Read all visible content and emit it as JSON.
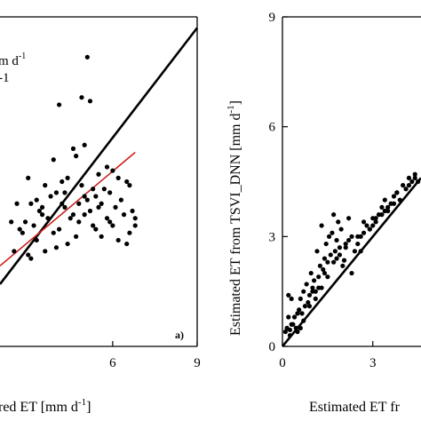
{
  "chart_data": [
    {
      "panel": "a",
      "type": "scatter",
      "panel_label": "a)",
      "xlabel": "red ET [mm d",
      "xlabel_sup": "-1",
      "xlabel_end": "]",
      "annotation": "m d",
      "annotation_sup": "-1",
      "annotation2_sup": "-1",
      "xlim": [
        2.0,
        9.0
      ],
      "ylim": [
        0,
        9
      ],
      "xticks": [
        6,
        9
      ],
      "grid": false,
      "lines": [
        {
          "kind": "1:1",
          "color": "#000000",
          "x": [
            2.0,
            9.0
          ],
          "y": [
            1.7,
            8.7
          ]
        },
        {
          "kind": "fit",
          "color": "#cc1f1f",
          "x": [
            2.0,
            6.8
          ],
          "y": [
            2.2,
            5.3
          ]
        }
      ],
      "points": {
        "x": [
          5.1,
          4.1,
          4.9,
          5.2,
          5.0,
          4.6,
          4.7,
          5.8,
          3.9,
          4.4,
          5.5,
          6.0,
          6.5,
          6.6,
          6.2,
          5.7,
          4.2,
          3.6,
          4.9,
          5.3,
          5.4,
          5.9,
          6.3,
          4.0,
          3.8,
          3.3,
          3.1,
          3.5,
          2.6,
          3.0,
          3.4,
          4.3,
          4.8,
          5.1,
          5.6,
          6.1,
          6.7,
          6.4,
          5.0,
          4.5,
          3.7,
          2.9,
          3.2,
          2.7,
          2.4,
          4.6,
          5.2,
          5.8,
          6.0,
          4.1,
          3.9,
          4.7,
          5.4,
          6.6,
          2.8,
          3.3,
          4.4,
          5.6,
          6.2,
          6.5,
          5.9,
          5.3,
          4.0,
          3.6,
          3.0,
          2.5,
          4.8,
          5.5,
          4.2,
          3.5,
          6.8,
          6.8,
          5.0,
          4.3,
          3.1
        ],
        "y": [
          7.9,
          6.6,
          6.8,
          6.7,
          5.5,
          5.4,
          5.2,
          4.9,
          5.1,
          4.6,
          4.7,
          4.8,
          4.5,
          4.4,
          4.6,
          4.3,
          4.5,
          4.4,
          4.4,
          4.3,
          4.1,
          4.2,
          4.0,
          4.2,
          4.1,
          4.0,
          3.9,
          3.8,
          3.9,
          4.6,
          3.7,
          3.8,
          3.9,
          4.0,
          3.9,
          3.8,
          3.7,
          3.6,
          3.6,
          3.5,
          3.5,
          3.4,
          3.3,
          3.2,
          3.4,
          3.6,
          3.7,
          3.5,
          3.3,
          3.2,
          3.1,
          3.0,
          3.2,
          3.1,
          3.1,
          2.9,
          2.8,
          3.0,
          2.9,
          2.8,
          3.4,
          3.3,
          2.7,
          2.6,
          2.5,
          2.6,
          3.4,
          3.8,
          3.9,
          3.6,
          3.5,
          3.3,
          4.1,
          4.2,
          2.4
        ]
      }
    },
    {
      "panel": "b",
      "type": "scatter",
      "ylabel": "Estimated ET from TSVI_DNN [mm d",
      "ylabel_sup": "-1",
      "ylabel_end": "]",
      "xlabel": "Estimated ET fr",
      "xlim": [
        0,
        4.6
      ],
      "ylim": [
        0,
        9
      ],
      "xticks": [
        0,
        3
      ],
      "yticks": [
        0,
        3,
        6,
        9
      ],
      "grid": false,
      "lines": [
        {
          "kind": "1:1",
          "color": "#000000",
          "x": [
            0,
            4.6
          ],
          "y": [
            0,
            4.6
          ]
        }
      ],
      "points": {
        "x": [
          0.1,
          0.15,
          0.2,
          0.25,
          0.3,
          0.35,
          0.4,
          0.45,
          0.5,
          0.55,
          0.6,
          0.65,
          0.7,
          0.75,
          0.8,
          0.85,
          0.9,
          0.95,
          1.0,
          1.05,
          1.1,
          1.15,
          1.2,
          1.25,
          1.3,
          1.35,
          1.4,
          1.45,
          1.5,
          1.55,
          1.6,
          1.65,
          1.7,
          1.75,
          1.8,
          1.85,
          1.9,
          1.95,
          2.0,
          2.1,
          2.2,
          2.3,
          2.4,
          2.5,
          2.6,
          2.7,
          2.8,
          2.9,
          3.0,
          3.1,
          3.2,
          3.3,
          3.4,
          3.5,
          3.6,
          3.7,
          3.8,
          3.9,
          4.0,
          4.1,
          4.2,
          4.3,
          4.4,
          4.5,
          0.3,
          0.5,
          0.7,
          0.9,
          1.1,
          1.3,
          1.5,
          1.7,
          1.9,
          2.1,
          2.3,
          2.5,
          2.7,
          2.9,
          3.1,
          3.3,
          3.5,
          3.7,
          0.2,
          0.6,
          1.0,
          1.4,
          1.8,
          2.2,
          2.6,
          3.0,
          3.4,
          3.8,
          4.2,
          4.4,
          0.25,
          1.2,
          2.05
        ],
        "y": [
          0.4,
          0.5,
          1.4,
          0.3,
          1.3,
          0.6,
          0.8,
          0.5,
          0.9,
          1.0,
          1.3,
          0.9,
          1.5,
          1.1,
          1.7,
          1.2,
          1.4,
          2.0,
          1.6,
          1.8,
          1.5,
          2.6,
          1.9,
          2.2,
          3.3,
          2.1,
          2.4,
          2.8,
          2.3,
          3.0,
          2.5,
          3.1,
          3.6,
          2.6,
          2.9,
          3.4,
          2.7,
          3.2,
          2.2,
          2.8,
          3.5,
          2.0,
          2.6,
          3.0,
          2.6,
          3.1,
          3.3,
          3.2,
          3.5,
          3.4,
          3.6,
          3.8,
          4.0,
          3.7,
          3.9,
          4.1,
          4.2,
          4.0,
          4.4,
          4.3,
          4.6,
          4.5,
          4.7,
          4.5,
          0.6,
          0.4,
          0.7,
          1.1,
          1.3,
          1.6,
          1.9,
          2.3,
          2.5,
          2.7,
          3.0,
          2.8,
          3.4,
          3.2,
          3.5,
          3.6,
          3.8,
          3.9,
          0.8,
          0.5,
          1.5,
          2.0,
          2.4,
          2.9,
          3.0,
          3.3,
          3.7,
          4.2,
          4.4,
          4.6,
          0.45,
          1.6,
          2.35
        ]
      }
    }
  ]
}
